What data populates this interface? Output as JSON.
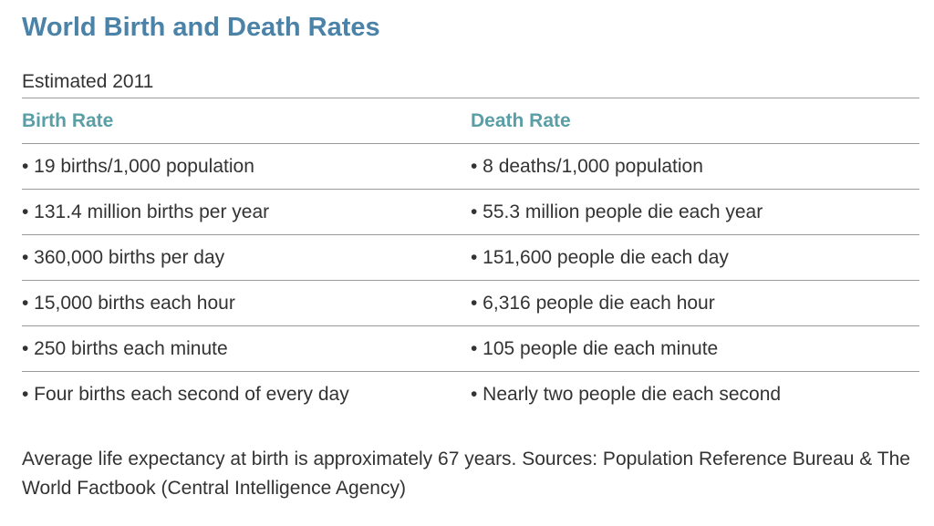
{
  "title": "World Birth and Death Rates",
  "caption": "Estimated 2011",
  "table": {
    "headers": [
      "Birth Rate",
      "Death Rate"
    ],
    "rows": [
      [
        "• 19 births/1,000 population",
        "• 8 deaths/1,000 population"
      ],
      [
        "• 131.4 million births per year",
        "• 55.3 million people die each year"
      ],
      [
        "• 360,000 births per day",
        "• 151,600 people die each day"
      ],
      [
        "• 15,000 births each hour",
        "• 6,316 people die each hour"
      ],
      [
        "• 250 births each minute",
        "• 105 people die each minute"
      ],
      [
        "• Four births each second of every day",
        "• Nearly two people die each second"
      ]
    ]
  },
  "footnote": "Average life expectancy at birth is approximately 67 years. Sources: Population Reference Bureau & The World Factbook (Central Intelligence Agency)",
  "colors": {
    "title": "#4a82a8",
    "header": "#5a9ea6",
    "text": "#333333",
    "rule": "#9a9a9a"
  }
}
